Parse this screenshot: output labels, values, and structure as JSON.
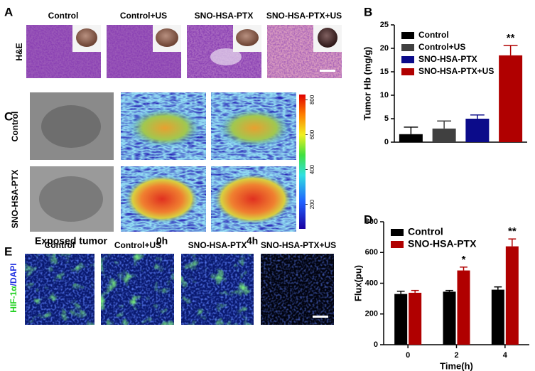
{
  "panels": {
    "A": {
      "label": "A",
      "row_label": "H&E",
      "columns": [
        "Control",
        "Control+US",
        "SNO-HSA-PTX",
        "SNO-HSA-PTX+US"
      ]
    },
    "C": {
      "label": "C",
      "rows": [
        "Control",
        "SNO-HSA-PTX"
      ],
      "columns": [
        "Exposed tumor",
        "0h",
        "4h"
      ],
      "colorbar": {
        "lim": [
          60,
          830
        ],
        "ticks": [
          200,
          400,
          600,
          800
        ]
      }
    },
    "E": {
      "label": "E",
      "row_label": [
        "HIF-1α",
        "/DAPI"
      ],
      "columns": [
        "Control",
        "Control+US",
        "SNO-HSA-PTX",
        "SNO-HSA-PTX+US"
      ]
    }
  },
  "chart_data": [
    {
      "type": "bar",
      "panel": "B",
      "ylabel": "Tumor Hb (mg/g)",
      "ylim": [
        0,
        25
      ],
      "yticks": [
        0,
        5,
        10,
        15,
        20,
        25
      ],
      "legend": "upper left",
      "series": [
        {
          "name": "Control",
          "color": "#000000",
          "values": [
            1.7
          ],
          "errors": [
            1.5
          ]
        },
        {
          "name": "Control+US",
          "color": "#404040",
          "values": [
            2.9
          ],
          "errors": [
            1.6
          ]
        },
        {
          "name": "SNO-HSA-PTX",
          "color": "#0b0b8a",
          "values": [
            5.0
          ],
          "errors": [
            0.8
          ]
        },
        {
          "name": "SNO-HSA-PTX+US",
          "color": "#b00000",
          "values": [
            18.5
          ],
          "errors": [
            2.1
          ],
          "annotations": [
            "**"
          ]
        }
      ]
    },
    {
      "type": "bar",
      "panel": "D",
      "ylabel": "Flux(pu)",
      "xlabel": "Time(h)",
      "categories": [
        "0",
        "2",
        "4"
      ],
      "ylim": [
        0,
        800
      ],
      "yticks": [
        0,
        200,
        400,
        600,
        800
      ],
      "legend": "upper left",
      "series": [
        {
          "name": "Control",
          "color": "#000000",
          "values": [
            330,
            345,
            358
          ],
          "errors": [
            18,
            8,
            18
          ]
        },
        {
          "name": "SNO-HSA-PTX",
          "color": "#b00000",
          "values": [
            338,
            483,
            640
          ],
          "errors": [
            15,
            22,
            48
          ],
          "annotations": [
            null,
            "*",
            "**"
          ]
        }
      ]
    }
  ]
}
